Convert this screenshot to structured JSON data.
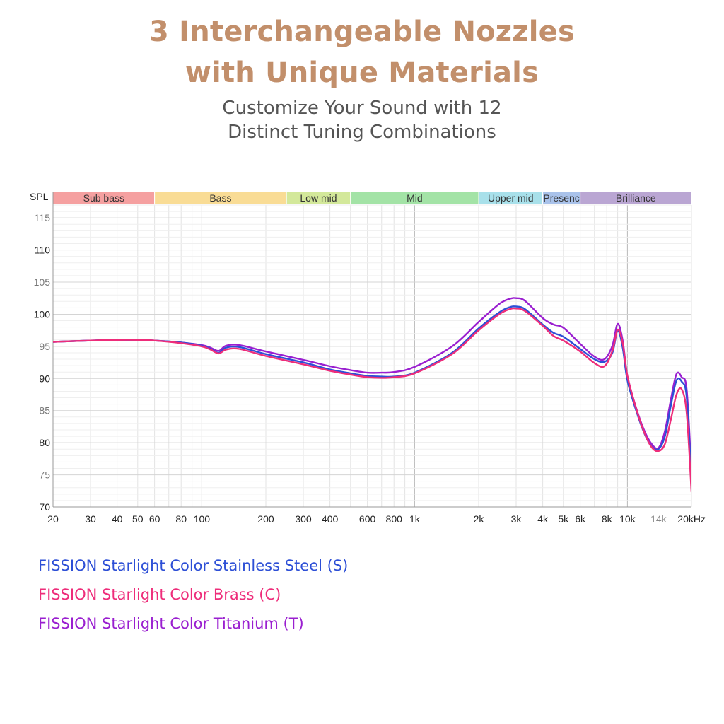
{
  "header": {
    "title_line1": "3 Interchangeable Nozzles",
    "title_line2": "with Unique Materials",
    "subtitle_line1": "Customize Your Sound with 12",
    "subtitle_line2": "Distinct Tuning Combinations"
  },
  "chart_data": {
    "type": "line",
    "ylabel": "SPL",
    "xscale": "log",
    "xlim": [
      20,
      20000
    ],
    "ylim": [
      70,
      117
    ],
    "grid": true,
    "x_ticks": [
      {
        "value": 20,
        "label": "20"
      },
      {
        "value": 30,
        "label": "30"
      },
      {
        "value": 40,
        "label": "40"
      },
      {
        "value": 50,
        "label": "50"
      },
      {
        "value": 60,
        "label": "60"
      },
      {
        "value": 80,
        "label": "80"
      },
      {
        "value": 100,
        "label": "100"
      },
      {
        "value": 200,
        "label": "200"
      },
      {
        "value": 300,
        "label": "300"
      },
      {
        "value": 400,
        "label": "400"
      },
      {
        "value": 600,
        "label": "600"
      },
      {
        "value": 800,
        "label": "800"
      },
      {
        "value": 1000,
        "label": "1k"
      },
      {
        "value": 2000,
        "label": "2k"
      },
      {
        "value": 3000,
        "label": "3k"
      },
      {
        "value": 4000,
        "label": "4k"
      },
      {
        "value": 5000,
        "label": "5k"
      },
      {
        "value": 6000,
        "label": "6k"
      },
      {
        "value": 8000,
        "label": "8k"
      },
      {
        "value": 10000,
        "label": "10k"
      },
      {
        "value": 14000,
        "label": "14k"
      },
      {
        "value": 20000,
        "label": "20kHz"
      }
    ],
    "y_ticks": [
      {
        "value": 70,
        "label": "70"
      },
      {
        "value": 75,
        "label": "75"
      },
      {
        "value": 80,
        "label": "80"
      },
      {
        "value": 85,
        "label": "85"
      },
      {
        "value": 90,
        "label": "90"
      },
      {
        "value": 95,
        "label": "95"
      },
      {
        "value": 100,
        "label": "100"
      },
      {
        "value": 105,
        "label": "105"
      },
      {
        "value": 110,
        "label": "110"
      },
      {
        "value": 115,
        "label": "115"
      }
    ],
    "bands": [
      {
        "label": "Sub bass",
        "from": 20,
        "to": 60,
        "color": "#f5a0a0"
      },
      {
        "label": "Bass",
        "from": 60,
        "to": 250,
        "color": "#f9dc95"
      },
      {
        "label": "Low mid",
        "from": 250,
        "to": 500,
        "color": "#d3e89a"
      },
      {
        "label": "Mid",
        "from": 500,
        "to": 2000,
        "color": "#a3e3a6"
      },
      {
        "label": "Upper mid",
        "from": 2000,
        "to": 4000,
        "color": "#a8e0ea"
      },
      {
        "label": "Presenc",
        "from": 4000,
        "to": 6000,
        "color": "#a9c2ea"
      },
      {
        "label": "Brilliance",
        "from": 6000,
        "to": 20000,
        "color": "#baa6d3"
      }
    ],
    "series": [
      {
        "name": "FISSION Starlight Color Stainless Steel (S)",
        "color": "#2d4fd6",
        "x": [
          20,
          30,
          40,
          50,
          60,
          80,
          100,
          110,
          120,
          130,
          150,
          200,
          300,
          400,
          500,
          600,
          700,
          800,
          1000,
          1500,
          2000,
          2500,
          2800,
          3000,
          3300,
          4000,
          4500,
          5000,
          6000,
          7000,
          7800,
          8500,
          9000,
          9500,
          10000,
          11000,
          12000,
          13000,
          14000,
          15000,
          16000,
          17000,
          18000,
          19000,
          20000
        ],
        "y": [
          95.7,
          95.9,
          96.0,
          96.0,
          95.9,
          95.6,
          95.1,
          94.6,
          94.0,
          94.8,
          94.9,
          93.8,
          92.5,
          91.4,
          90.8,
          90.4,
          90.3,
          90.3,
          90.9,
          94.0,
          97.8,
          100.3,
          101.1,
          101.2,
          100.8,
          98.4,
          97.1,
          96.5,
          94.6,
          93.0,
          92.6,
          94.0,
          97.5,
          94.8,
          89.7,
          85.0,
          81.5,
          79.4,
          79.0,
          81.0,
          85.8,
          89.7,
          89.5,
          87.0,
          73.8
        ]
      },
      {
        "name": "FISSION Starlight Color Brass (C)",
        "color": "#ee2d7a",
        "x": [
          20,
          30,
          40,
          50,
          60,
          80,
          100,
          110,
          120,
          130,
          150,
          200,
          300,
          400,
          500,
          600,
          700,
          800,
          1000,
          1500,
          2000,
          2500,
          2800,
          3000,
          3300,
          4000,
          4500,
          5000,
          6000,
          7000,
          7800,
          8500,
          9000,
          9500,
          10000,
          11000,
          12000,
          13000,
          14000,
          15000,
          16000,
          17000,
          18000,
          19000,
          20000
        ],
        "y": [
          95.7,
          95.9,
          96.0,
          96.0,
          95.9,
          95.5,
          95.0,
          94.5,
          93.9,
          94.5,
          94.6,
          93.5,
          92.2,
          91.2,
          90.6,
          90.2,
          90.1,
          90.2,
          90.8,
          93.8,
          97.5,
          100.0,
          100.8,
          100.9,
          100.5,
          98.2,
          96.6,
          95.9,
          94.2,
          92.4,
          91.9,
          94.3,
          97.6,
          95.5,
          90.4,
          85.3,
          81.6,
          79.3,
          78.7,
          79.8,
          83.6,
          87.5,
          88.3,
          84.5,
          72.3
        ]
      },
      {
        "name": "FISSION Starlight Color Titanium (T)",
        "color": "#9a1fd0",
        "x": [
          20,
          30,
          40,
          50,
          60,
          80,
          100,
          110,
          120,
          130,
          150,
          200,
          300,
          400,
          500,
          600,
          700,
          800,
          1000,
          1500,
          2000,
          2500,
          2800,
          3000,
          3300,
          4000,
          4500,
          5000,
          6000,
          7000,
          7800,
          8500,
          9000,
          9500,
          10000,
          11000,
          12000,
          13000,
          14000,
          15000,
          16000,
          17000,
          18000,
          19000,
          20000
        ],
        "y": [
          95.7,
          95.9,
          96.0,
          96.0,
          95.9,
          95.6,
          95.2,
          94.8,
          94.3,
          95.1,
          95.2,
          94.2,
          92.9,
          91.9,
          91.3,
          90.9,
          90.9,
          91.0,
          91.8,
          95.0,
          98.8,
          101.6,
          102.4,
          102.5,
          102.1,
          99.4,
          98.4,
          97.9,
          95.4,
          93.4,
          93.0,
          95.1,
          98.5,
          95.9,
          90.4,
          85.4,
          81.9,
          79.8,
          79.2,
          81.8,
          86.7,
          90.7,
          90.2,
          88.2,
          75.1
        ]
      }
    ]
  }
}
